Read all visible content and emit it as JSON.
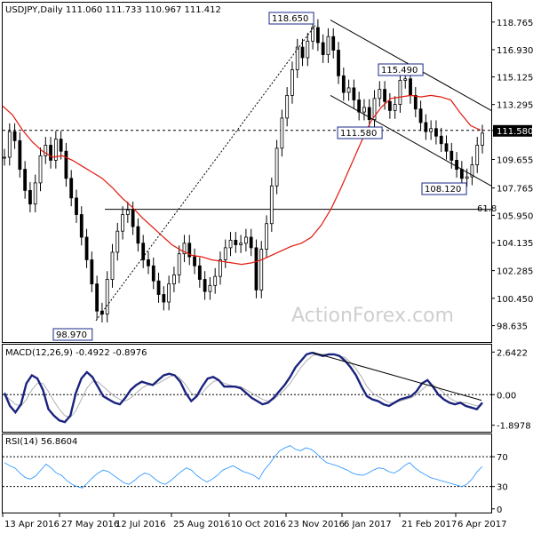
{
  "chart_data": [
    {
      "type": "candlestick",
      "header": "USDJPY,Daily  111.060 111.733 110.967 111.412",
      "ylim": [
        98.635,
        119.5
      ],
      "y_ticks": [
        "118.765",
        "116.930",
        "115.125",
        "113.295",
        "111.580",
        "109.655",
        "107.765",
        "105.950",
        "104.135",
        "102.285",
        "100.450",
        "98.635"
      ],
      "x_ticks": [
        "13 Apr 2016",
        "27 May 2016",
        "12 Jul 2016",
        "25 Aug 2016",
        "10 Oct 2016",
        "23 Nov 2016",
        "6 Jan 2017",
        "21 Feb 2017",
        "6 Apr 2017"
      ],
      "annotations": [
        "118.650",
        "115.490",
        "111.580",
        "108.120",
        "98.970",
        "61.8"
      ],
      "current_price_label": "111.580",
      "key_levels": {
        "support_resistance": 111.58,
        "fib_61_8": 106.35
      },
      "close_path": [
        109.8,
        111.5,
        110.9,
        109.0,
        107.6,
        106.7,
        108.1,
        109.9,
        110.6,
        109.6,
        111.0,
        110.2,
        108.4,
        107.1,
        106.0,
        104.5,
        103.0,
        101.4,
        99.6,
        99.4,
        101.7,
        103.5,
        104.9,
        106.0,
        106.3,
        105.2,
        104.1,
        103.0,
        102.6,
        101.6,
        100.7,
        100.2,
        101.4,
        102.0,
        103.4,
        104.1,
        103.2,
        102.6,
        101.7,
        100.9,
        101.3,
        101.9,
        103.0,
        103.8,
        104.3,
        104.0,
        104.1,
        104.5,
        103.8,
        101.0,
        103.7,
        105.4,
        107.9,
        110.4,
        112.4,
        113.9,
        115.6,
        117.1,
        116.4,
        117.5,
        118.4,
        117.4,
        116.6,
        117.8,
        116.9,
        115.2,
        114.1,
        114.4,
        113.6,
        112.8,
        113.1,
        112.3,
        113.7,
        114.3,
        113.5,
        112.9,
        113.3,
        114.9,
        115.0,
        113.9,
        113.0,
        112.1,
        111.5,
        111.7,
        111.2,
        110.7,
        110.2,
        109.6,
        109.0,
        108.4,
        108.5,
        109.3,
        110.6,
        111.4
      ],
      "ma_path": [
        113.2,
        112.6,
        111.6,
        110.8,
        110.2,
        109.8,
        109.9,
        109.6,
        109.2,
        108.8,
        108.4,
        107.8,
        107.1,
        106.5,
        105.8,
        105.2,
        104.6,
        104.0,
        103.6,
        103.3,
        103.2,
        103.0,
        102.9,
        102.8,
        102.7,
        102.8,
        103.0,
        103.3,
        103.6,
        103.9,
        104.1,
        104.5,
        105.3,
        106.4,
        107.8,
        109.3,
        110.8,
        112.2,
        113.1,
        113.7,
        113.8,
        113.9,
        113.8,
        113.9,
        113.8,
        113.6,
        112.7,
        111.9,
        111.6
      ],
      "channel_upper": [
        [
          118.9,
          0
        ],
        [
          112.9,
          1
        ]
      ],
      "channel_lower": [
        [
          113.9,
          0
        ],
        [
          107.9,
          1
        ]
      ]
    },
    {
      "type": "line",
      "header": "MACD(12,26,9) -0.4922 -0.8976",
      "y_ticks": [
        "2.6422",
        "0.00",
        "-1.8978"
      ],
      "macd_path": [
        0.1,
        -0.7,
        -1.1,
        -0.6,
        0.7,
        1.2,
        1.0,
        0.3,
        -0.9,
        -1.3,
        -1.6,
        -1.7,
        -1.3,
        0.1,
        1.0,
        1.4,
        1.1,
        0.5,
        -0.1,
        -0.3,
        -0.5,
        -0.6,
        -0.2,
        0.3,
        0.6,
        0.8,
        0.7,
        0.6,
        0.9,
        1.2,
        1.3,
        1.2,
        0.8,
        0.1,
        -0.4,
        -0.1,
        0.5,
        1.0,
        1.1,
        0.9,
        0.5,
        0.5,
        0.5,
        0.4,
        0.1,
        -0.2,
        -0.4,
        -0.6,
        -0.5,
        -0.2,
        0.2,
        0.6,
        1.1,
        1.7,
        2.1,
        2.5,
        2.6,
        2.5,
        2.4,
        2.5,
        2.5,
        2.4,
        2.1,
        1.7,
        1.2,
        0.5,
        -0.1,
        -0.3,
        -0.4,
        -0.6,
        -0.7,
        -0.5,
        -0.3,
        -0.2,
        -0.1,
        0.2,
        0.7,
        0.9,
        0.5,
        0.0,
        -0.3,
        -0.5,
        -0.6,
        -0.5,
        -0.7,
        -0.8,
        -0.9,
        -0.5
      ],
      "signal_path": [
        0.0,
        -0.3,
        -0.6,
        -0.7,
        -0.3,
        0.3,
        0.7,
        0.7,
        0.2,
        -0.4,
        -0.9,
        -1.3,
        -1.4,
        -1.0,
        -0.3,
        0.4,
        0.8,
        0.8,
        0.5,
        0.2,
        -0.1,
        -0.3,
        -0.4,
        -0.2,
        0.1,
        0.4,
        0.6,
        0.6,
        0.7,
        0.9,
        1.1,
        1.2,
        1.0,
        0.6,
        0.1,
        -0.1,
        0.1,
        0.5,
        0.8,
        0.9,
        0.7,
        0.6,
        0.5,
        0.5,
        0.3,
        0.1,
        -0.1,
        -0.3,
        -0.4,
        -0.3,
        0.0,
        0.3,
        0.7,
        1.2,
        1.7,
        2.1,
        2.4,
        2.5,
        2.5,
        2.5,
        2.5,
        2.4,
        2.3,
        2.0,
        1.6,
        1.1,
        0.5,
        0.1,
        -0.1,
        -0.3,
        -0.5,
        -0.5,
        -0.4,
        -0.3,
        -0.2,
        0.0,
        0.3,
        0.6,
        0.6,
        0.4,
        0.1,
        -0.2,
        -0.4,
        -0.5,
        -0.5,
        -0.6,
        -0.7,
        -0.6
      ]
    },
    {
      "type": "line",
      "header": "RSI(14) 56.8604",
      "y_ticks": [
        "100",
        "70",
        "30",
        "0"
      ],
      "rsi_path": [
        62,
        58,
        55,
        48,
        42,
        40,
        44,
        52,
        60,
        55,
        48,
        45,
        38,
        33,
        30,
        28,
        35,
        42,
        48,
        52,
        50,
        45,
        40,
        35,
        33,
        38,
        44,
        48,
        46,
        40,
        35,
        33,
        38,
        44,
        50,
        55,
        52,
        45,
        40,
        36,
        40,
        45,
        52,
        55,
        58,
        54,
        50,
        48,
        45,
        40,
        52,
        60,
        70,
        78,
        82,
        85,
        80,
        78,
        82,
        80,
        75,
        68,
        62,
        60,
        58,
        55,
        52,
        48,
        46,
        45,
        48,
        52,
        55,
        54,
        50,
        48,
        52,
        58,
        62,
        55,
        50,
        46,
        42,
        40,
        38,
        36,
        34,
        32,
        30,
        33,
        40,
        50,
        56.9
      ]
    }
  ],
  "watermark": "ActionForex.com"
}
